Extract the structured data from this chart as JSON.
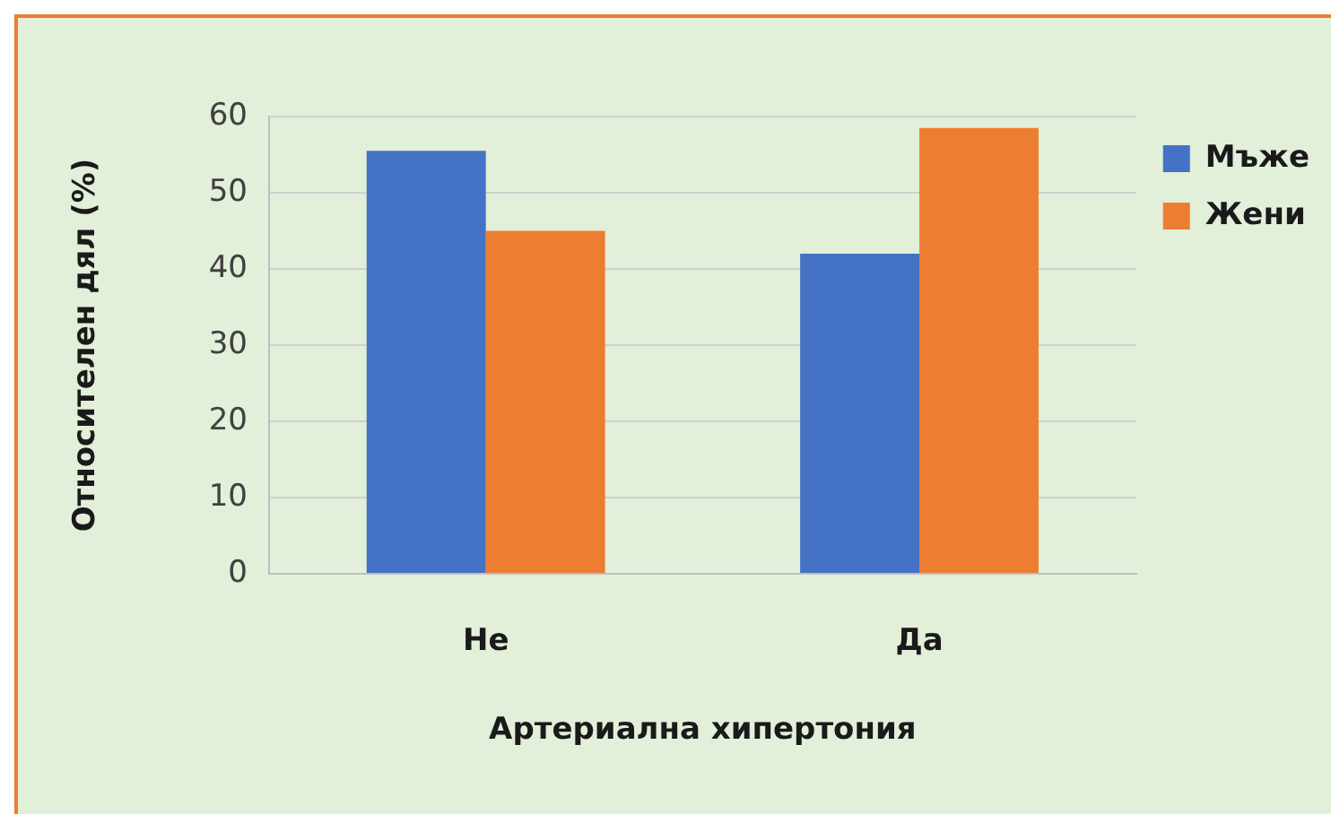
{
  "chart_data": {
    "type": "bar",
    "categories": [
      "Не",
      "Да"
    ],
    "xlabel": "Артериална хипертония",
    "ylabel": "Относителен дял (%)",
    "series": [
      {
        "name": "Мъже",
        "color": "#4472c4",
        "values": [
          55.5,
          42
        ]
      },
      {
        "name": "Жени",
        "color": "#ed7d31",
        "values": [
          45,
          58.5
        ]
      }
    ],
    "ylim": [
      0,
      60
    ],
    "yticks": [
      0,
      10,
      20,
      30,
      40,
      50,
      60
    ],
    "grid": "y",
    "legend": "top right"
  }
}
